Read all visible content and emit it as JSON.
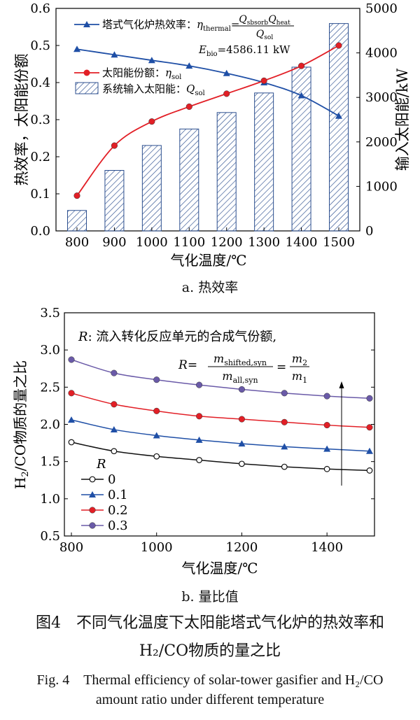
{
  "chart_data": [
    {
      "type": "bar",
      "xlabel": "气化温度/℃",
      "ylabel_left": "热效率，太阳能份额",
      "ylabel_right": "输入太阳能/kW",
      "categories": [
        "800",
        "900",
        "1000",
        "1100",
        "1200",
        "1300",
        "1400",
        "1500"
      ],
      "xlim": [
        800,
        1500
      ],
      "ylim_left": [
        0,
        0.6
      ],
      "ylim_right": [
        0,
        5000
      ],
      "yticks_left": [
        "0.0",
        "0.1",
        "0.2",
        "0.3",
        "0.4",
        "0.5",
        "0.6"
      ],
      "yticks_right": [
        "0",
        "1000",
        "2000",
        "3000",
        "4000",
        "5000"
      ],
      "legend_position": "top-left",
      "series": [
        {
          "name": "塔式气化炉热效率",
          "type": "line",
          "axis": "left",
          "color": "#1f4fa6",
          "marker": "triangle",
          "values": [
            0.49,
            0.475,
            0.46,
            0.445,
            0.425,
            0.4,
            0.365,
            0.31
          ]
        },
        {
          "name": "太阳能份额",
          "type": "line",
          "axis": "left",
          "color": "#e21f26",
          "marker": "circle",
          "values": [
            0.095,
            0.23,
            0.295,
            0.335,
            0.37,
            0.405,
            0.445,
            0.5
          ]
        },
        {
          "name": "系统输入太阳能",
          "type": "bar",
          "axis": "right",
          "pattern": "hatch",
          "values": [
            460,
            1360,
            1920,
            2290,
            2660,
            3100,
            3680,
            4660
          ]
        }
      ],
      "legend": {
        "eff_prefix": "塔式气化炉热效率：",
        "eff_eta": "η",
        "eff_sub": "thermal",
        "eff_num": "Q",
        "eff_num_sub1": "sbsorb",
        "eff_num_q2": "Q",
        "eff_num_sub2": "heat",
        "eff_den": "Q",
        "eff_den_sub": "sol",
        "ebio_e": "E",
        "ebio_sub": "bio",
        "ebio_val": "=4586.11 kW",
        "solar_prefix": "太阳能份额：",
        "solar_eta": "η",
        "solar_sub": "sol",
        "input_prefix": "系统输入太阳能：",
        "input_q": "Q",
        "input_sub": "sol"
      }
    },
    {
      "type": "line",
      "xlabel": "气化温度/℃",
      "ylabel": "H₂/CO物质的量之比",
      "xlim": [
        800,
        1500
      ],
      "ylim": [
        0.5,
        3.5
      ],
      "xticks": [
        "800",
        "1000",
        "1200",
        "1400"
      ],
      "yticks": [
        "0.5",
        "1.0",
        "1.5",
        "2.0",
        "2.5",
        "3.0",
        "3.5"
      ],
      "x": [
        800,
        900,
        1000,
        1100,
        1200,
        1300,
        1400,
        1500
      ],
      "legend_title": "R",
      "legend_position": "bottom-left",
      "series": [
        {
          "name": "0",
          "color": "#111111",
          "marker": "open-circle",
          "values": [
            1.76,
            1.64,
            1.57,
            1.52,
            1.47,
            1.43,
            1.4,
            1.38
          ]
        },
        {
          "name": "0.1",
          "color": "#1f4fa6",
          "marker": "triangle",
          "values": [
            2.06,
            1.93,
            1.85,
            1.79,
            1.74,
            1.7,
            1.67,
            1.64
          ]
        },
        {
          "name": "0.2",
          "color": "#e21f26",
          "marker": "circle",
          "values": [
            2.42,
            2.27,
            2.18,
            2.11,
            2.07,
            2.03,
            1.99,
            1.96
          ]
        },
        {
          "name": "0.3",
          "color": "#6a5aa8",
          "marker": "circle",
          "values": [
            2.87,
            2.69,
            2.6,
            2.53,
            2.47,
            2.42,
            2.38,
            2.35
          ]
        }
      ],
      "annotation": {
        "r_label": "R",
        "r_text": ": 流入转化反应单元的合成气份额,",
        "eq_r": "R",
        "eq_eq": "=",
        "eq_m": "m",
        "eq_num_sub": "shifted,syn",
        "eq_den_sub": "all,syn",
        "eq_eq2": "=",
        "eq_m2": "m",
        "eq_m2_sub": "2",
        "eq_m1": "m",
        "eq_m1_sub": "1"
      }
    }
  ],
  "captions": {
    "sub_a": "a. 热效率",
    "sub_b": "b. 量比值",
    "cn_line1": "图4　不同气化温度下太阳能塔式气化炉的热效率和",
    "cn_line2": "H₂/CO物质的量之比",
    "en_line1": "Fig. 4　Thermal efficiency of solar-tower gasifier and H₂/CO",
    "en_line2": "amount ratio under different temperature"
  }
}
